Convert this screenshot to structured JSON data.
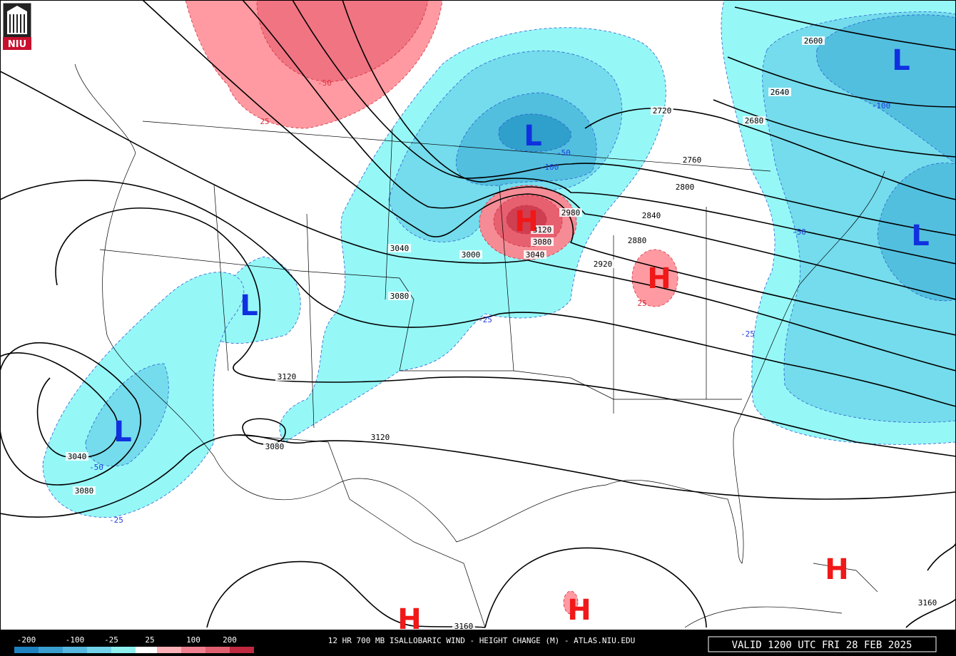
{
  "logo": "NIU",
  "title": "12 HR 700 MB ISALLOBARIC WIND - HEIGHT CHANGE (M) - ATLAS.NIU.EDU",
  "valid": "VALID 1200 UTC FRI 28 FEB 2025",
  "legend": {
    "labels": [
      -200,
      -100,
      -25,
      25,
      100,
      200
    ]
  },
  "height_contour_labels": [
    2600,
    2640,
    2680,
    2720,
    2760,
    2800,
    2840,
    2880,
    2920,
    2980,
    3040,
    3000,
    3040,
    3120,
    3080,
    3080,
    3120,
    3120,
    3080,
    3040,
    3080,
    3160,
    3160
  ],
  "change_labels": [
    -50,
    25,
    -100,
    -50,
    -100,
    -50,
    -25,
    -25,
    25,
    -50,
    -25
  ],
  "centers": [
    "L",
    "L",
    "L",
    "L",
    "L",
    "H",
    "H",
    "H",
    "H",
    "H"
  ]
}
